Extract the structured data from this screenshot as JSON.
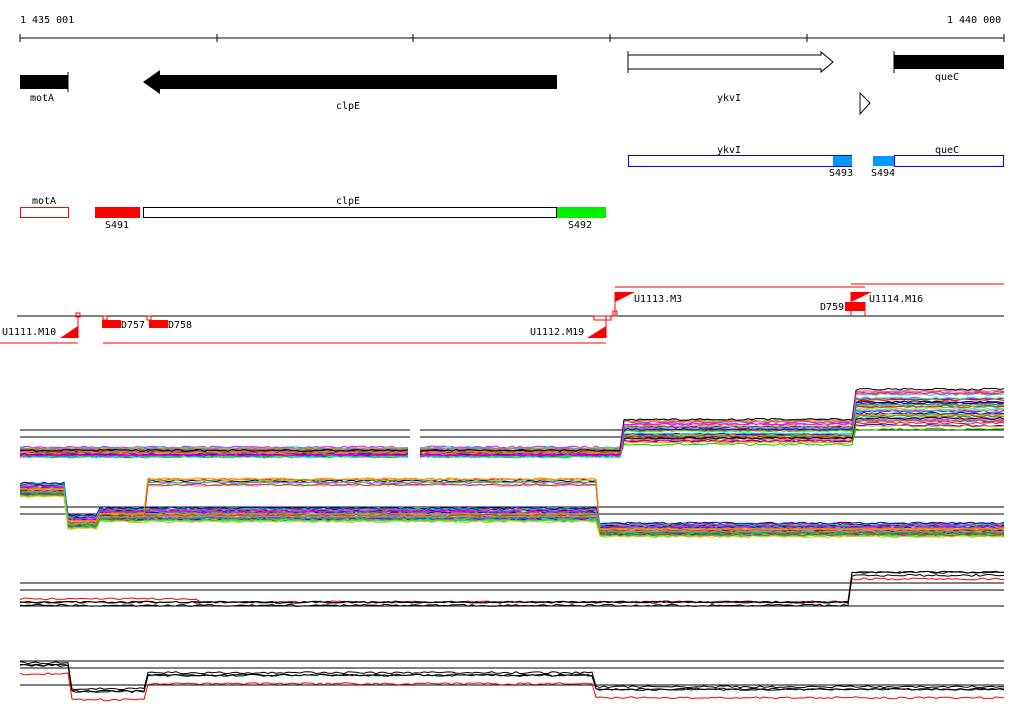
{
  "ruler": {
    "start_label": "1 435 001",
    "end_label": "1 440 000"
  },
  "genes": [
    {
      "name": "motA",
      "strand": "-"
    },
    {
      "name": "clpE",
      "strand": "-"
    },
    {
      "name": "ykvI",
      "strand": "+"
    },
    {
      "name": "queC",
      "strand": "+"
    }
  ],
  "segments_top": {
    "ykvI": "ykvI",
    "queC": "queC",
    "s493": "S493",
    "s494": "S494"
  },
  "segments_bottom": {
    "motA": "motA",
    "clpE": "clpE",
    "s491": "S491",
    "s492": "S492"
  },
  "features": {
    "u1111": "U1111.M10",
    "u1112": "U1112.M19",
    "u1113": "U1113.M3",
    "u1114": "U1114.M16",
    "d757": "D757",
    "d758": "D758",
    "d759": "D759"
  },
  "colors": {
    "red": "#ff0000",
    "green": "#00ee00",
    "blue": "#0000ff",
    "lightblue": "#0099ff"
  }
}
